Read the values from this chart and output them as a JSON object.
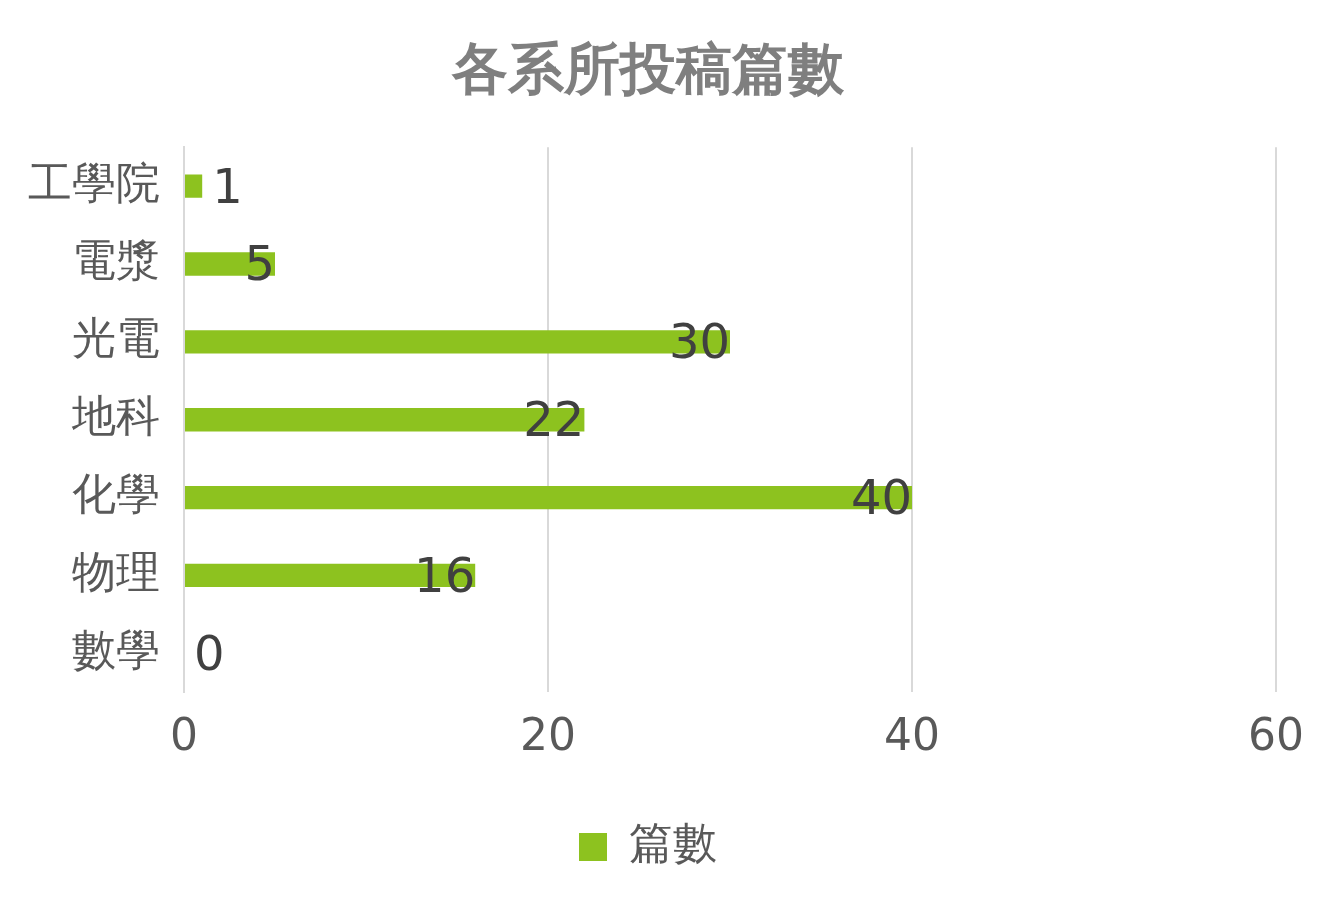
{
  "chart_data": {
    "type": "bar",
    "orientation": "horizontal",
    "title": "各系所投稿篇數",
    "categories": [
      "工學院",
      "電漿",
      "光電",
      "地科",
      "化學",
      "物理",
      "數學"
    ],
    "series": [
      {
        "name": "篇數",
        "color": "#8dc21f",
        "values": [
          1,
          5,
          30,
          22,
          40,
          16,
          0
        ]
      }
    ],
    "xlim": [
      0,
      60
    ],
    "xticks": [
      0,
      20,
      40,
      60
    ],
    "grid": "x",
    "legend": "bottom",
    "data_labels": true
  }
}
